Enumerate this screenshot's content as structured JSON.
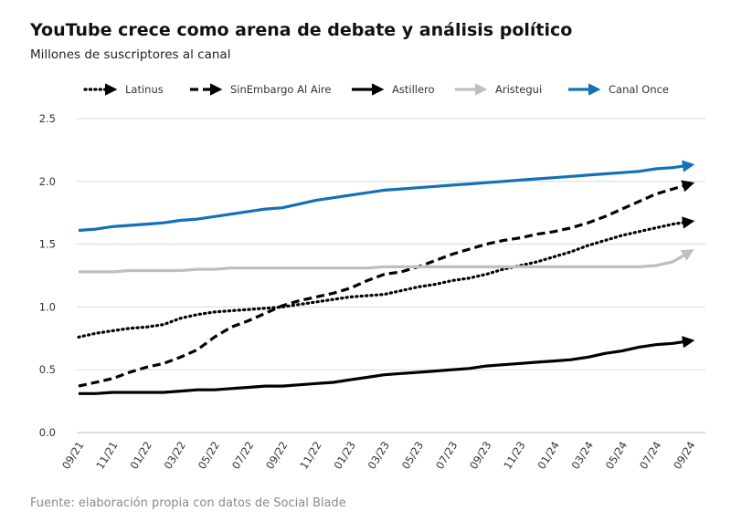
{
  "header": {
    "title": "YouTube crece como arena de debate y análisis político",
    "subtitle": "Millones de suscriptores al canal"
  },
  "footer": {
    "source": "Fuente: elaboración propia con datos de Social Blade"
  },
  "chart_data": {
    "type": "line",
    "ylim": [
      0,
      2.5
    ],
    "yticks": [
      "0.0",
      "0.5",
      "1.0",
      "1.5",
      "2.0",
      "2.5"
    ],
    "grid": "horizontal",
    "legend_position": "top",
    "x": [
      "09/21",
      "10/21",
      "11/21",
      "12/21",
      "01/22",
      "02/22",
      "03/22",
      "04/22",
      "05/22",
      "06/22",
      "07/22",
      "08/22",
      "09/22",
      "10/22",
      "11/22",
      "12/22",
      "01/23",
      "02/23",
      "03/23",
      "04/23",
      "05/23",
      "06/23",
      "07/23",
      "08/23",
      "09/23",
      "10/23",
      "11/23",
      "12/23",
      "01/24",
      "02/24",
      "03/24",
      "04/24",
      "05/24",
      "06/24",
      "07/24",
      "08/24",
      "09/24"
    ],
    "xticks": [
      "09/21",
      "11/21",
      "01/22",
      "03/22",
      "05/22",
      "07/22",
      "09/22",
      "11/22",
      "01/23",
      "03/23",
      "05/23",
      "07/23",
      "09/23",
      "11/23",
      "01/24",
      "03/24",
      "05/24",
      "07/24",
      "09/24"
    ],
    "series": [
      {
        "name": "Latinus",
        "color": "#000000",
        "style": "dotted",
        "values": [
          0.76,
          0.79,
          0.81,
          0.83,
          0.84,
          0.86,
          0.91,
          0.94,
          0.96,
          0.97,
          0.98,
          0.99,
          1.0,
          1.02,
          1.04,
          1.06,
          1.08,
          1.09,
          1.1,
          1.13,
          1.16,
          1.18,
          1.21,
          1.23,
          1.26,
          1.3,
          1.33,
          1.36,
          1.4,
          1.44,
          1.49,
          1.53,
          1.57,
          1.6,
          1.63,
          1.66,
          1.68
        ]
      },
      {
        "name": "SinEmbargo Al Aire",
        "color": "#000000",
        "style": "dashed",
        "values": [
          0.37,
          0.4,
          0.43,
          0.48,
          0.52,
          0.55,
          0.6,
          0.66,
          0.76,
          0.84,
          0.89,
          0.95,
          1.01,
          1.05,
          1.08,
          1.11,
          1.15,
          1.21,
          1.26,
          1.28,
          1.32,
          1.37,
          1.42,
          1.46,
          1.5,
          1.53,
          1.55,
          1.58,
          1.6,
          1.63,
          1.67,
          1.72,
          1.78,
          1.84,
          1.9,
          1.94,
          1.98
        ]
      },
      {
        "name": "Astillero",
        "color": "#000000",
        "style": "solid",
        "values": [
          0.31,
          0.31,
          0.32,
          0.32,
          0.32,
          0.32,
          0.33,
          0.34,
          0.34,
          0.35,
          0.36,
          0.37,
          0.37,
          0.38,
          0.39,
          0.4,
          0.42,
          0.44,
          0.46,
          0.47,
          0.48,
          0.49,
          0.5,
          0.51,
          0.53,
          0.54,
          0.55,
          0.56,
          0.57,
          0.58,
          0.6,
          0.63,
          0.65,
          0.68,
          0.7,
          0.71,
          0.73
        ]
      },
      {
        "name": "Aristegui",
        "color": "#bfbfbf",
        "style": "solid",
        "values": [
          1.28,
          1.28,
          1.28,
          1.29,
          1.29,
          1.29,
          1.29,
          1.3,
          1.3,
          1.31,
          1.31,
          1.31,
          1.31,
          1.31,
          1.31,
          1.31,
          1.31,
          1.31,
          1.32,
          1.32,
          1.32,
          1.32,
          1.32,
          1.32,
          1.32,
          1.32,
          1.32,
          1.32,
          1.32,
          1.32,
          1.32,
          1.32,
          1.32,
          1.32,
          1.33,
          1.36,
          1.44
        ]
      },
      {
        "name": "Canal Once",
        "color": "#1470b8",
        "style": "solid",
        "values": [
          1.61,
          1.62,
          1.64,
          1.65,
          1.66,
          1.67,
          1.69,
          1.7,
          1.72,
          1.74,
          1.76,
          1.78,
          1.79,
          1.82,
          1.85,
          1.87,
          1.89,
          1.91,
          1.93,
          1.94,
          1.95,
          1.96,
          1.97,
          1.98,
          1.99,
          2.0,
          2.01,
          2.02,
          2.03,
          2.04,
          2.05,
          2.06,
          2.07,
          2.08,
          2.1,
          2.11,
          2.13
        ]
      }
    ]
  }
}
